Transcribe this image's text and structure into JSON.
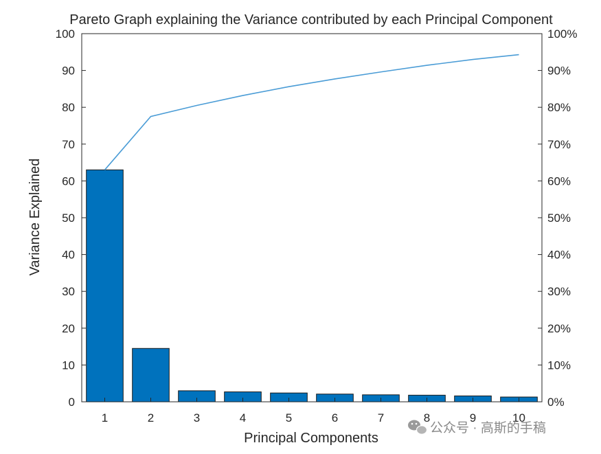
{
  "chart_data": {
    "type": "bar",
    "title": "Pareto Graph explaining the Variance contributed by each Principal Component",
    "xlabel": "Principal Components",
    "ylabel": "Variance Explained",
    "categories": [
      "1",
      "2",
      "3",
      "4",
      "5",
      "6",
      "7",
      "8",
      "9",
      "10"
    ],
    "values": [
      63.0,
      14.5,
      3.0,
      2.7,
      2.4,
      2.1,
      1.9,
      1.8,
      1.6,
      1.3
    ],
    "cumulative_percent": [
      63.0,
      77.5,
      80.5,
      83.2,
      85.6,
      87.7,
      89.6,
      91.4,
      93.0,
      94.3
    ],
    "ylim": [
      0,
      100
    ],
    "yticks": [
      "0",
      "10",
      "20",
      "30",
      "40",
      "50",
      "60",
      "70",
      "80",
      "90",
      "100"
    ],
    "y2lim": [
      0,
      100
    ],
    "y2ticks": [
      "0%",
      "10%",
      "20%",
      "30%",
      "40%",
      "50%",
      "60%",
      "70%",
      "80%",
      "90%",
      "100%"
    ],
    "grid": false,
    "bar_color": "#0072BD",
    "line_color": "#4A9CD6"
  },
  "watermark": {
    "text": "公众号 · 高斯的手稿",
    "icon": "wechat-icon"
  }
}
